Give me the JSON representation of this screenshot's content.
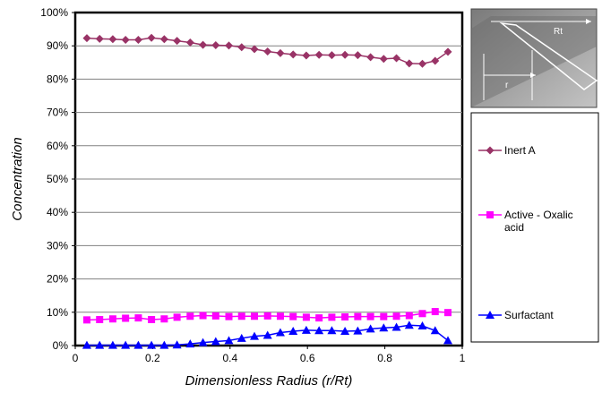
{
  "chart_data": {
    "type": "line",
    "title": "",
    "xlabel": "Dimensionless Radius (r/Rt)",
    "ylabel": "Concentration",
    "xlim": [
      0,
      1
    ],
    "ylim": [
      0,
      100
    ],
    "x_ticks": [
      "0",
      "0.2",
      "0.4",
      "0.6",
      "0.8",
      "1"
    ],
    "y_ticks": [
      "0%",
      "10%",
      "20%",
      "30%",
      "40%",
      "50%",
      "60%",
      "70%",
      "80%",
      "90%",
      "100%"
    ],
    "grid": "horizontal",
    "legend_position": "right",
    "x": [
      0.03,
      0.063,
      0.097,
      0.13,
      0.163,
      0.197,
      0.23,
      0.263,
      0.297,
      0.33,
      0.363,
      0.397,
      0.43,
      0.463,
      0.497,
      0.53,
      0.563,
      0.597,
      0.63,
      0.663,
      0.697,
      0.73,
      0.763,
      0.797,
      0.83,
      0.863,
      0.897,
      0.93,
      0.963
    ],
    "series": [
      {
        "name": "Inert A",
        "color": "#993366",
        "marker": "diamond",
        "values": [
          92.3,
          92.1,
          92.0,
          91.8,
          91.8,
          92.4,
          92.0,
          91.5,
          91.0,
          90.3,
          90.2,
          90.1,
          89.6,
          89.0,
          88.3,
          87.8,
          87.4,
          87.1,
          87.3,
          87.2,
          87.3,
          87.2,
          86.6,
          86.1,
          86.3,
          84.7,
          84.6,
          85.5,
          88.2
        ]
      },
      {
        "name": "Active - Oxalic acid",
        "color": "#ff00ff",
        "marker": "square",
        "values": [
          7.7,
          7.8,
          8.0,
          8.2,
          8.3,
          7.8,
          8.0,
          8.5,
          8.8,
          9.0,
          8.9,
          8.7,
          8.8,
          8.8,
          8.9,
          8.8,
          8.7,
          8.5,
          8.3,
          8.5,
          8.6,
          8.7,
          8.7,
          8.7,
          8.8,
          9.0,
          9.6,
          10.2,
          9.9
        ]
      },
      {
        "name": "Surfactant",
        "color": "#0000ff",
        "marker": "triangle",
        "values": [
          0.1,
          0.1,
          0.1,
          0.1,
          0.1,
          0.1,
          0.1,
          0.2,
          0.5,
          0.9,
          1.2,
          1.5,
          2.2,
          2.8,
          3.1,
          3.9,
          4.3,
          4.6,
          4.5,
          4.5,
          4.3,
          4.4,
          5.0,
          5.3,
          5.5,
          6.1,
          5.9,
          4.5,
          1.5
        ]
      }
    ]
  },
  "inset": {
    "label": "Rt",
    "radius_label": "r"
  }
}
